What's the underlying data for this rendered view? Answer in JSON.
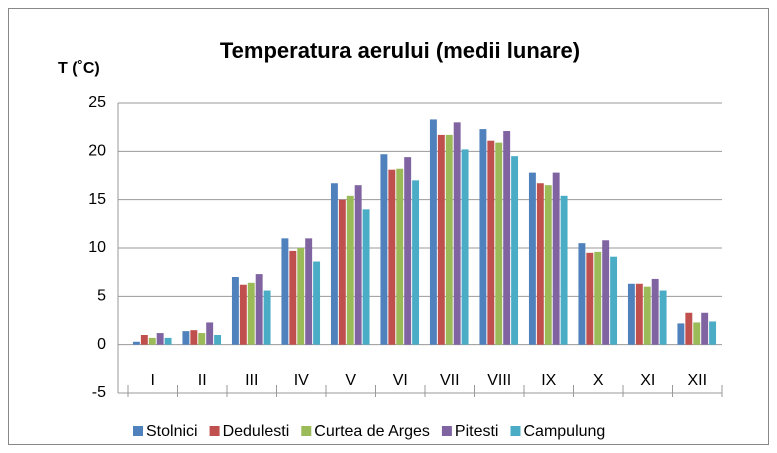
{
  "chart_data": {
    "type": "bar",
    "title": "Temperatura aerului (medii lunare)",
    "y_label": "T (˚C)",
    "categories": [
      "I",
      "II",
      "III",
      "IV",
      "V",
      "VI",
      "VII",
      "VIII",
      "IX",
      "X",
      "XI",
      "XII"
    ],
    "series": [
      {
        "name": "Stolnici",
        "color": "#4f81bd",
        "values": [
          0.3,
          1.4,
          7.0,
          11.0,
          16.7,
          19.7,
          23.3,
          22.3,
          17.8,
          10.5,
          6.3,
          2.2
        ]
      },
      {
        "name": "Dedulesti",
        "color": "#c0504d",
        "values": [
          1.0,
          1.5,
          6.2,
          9.7,
          15.0,
          18.1,
          21.7,
          21.1,
          16.7,
          9.5,
          6.3,
          3.3
        ]
      },
      {
        "name": "Curtea de Arges",
        "color": "#9bbb59",
        "values": [
          0.7,
          1.2,
          6.4,
          10.0,
          15.4,
          18.2,
          21.7,
          20.9,
          16.5,
          9.6,
          6.0,
          2.3
        ]
      },
      {
        "name": "Pitesti",
        "color": "#8064a2",
        "values": [
          1.2,
          2.3,
          7.3,
          11.0,
          16.5,
          19.4,
          23.0,
          22.1,
          17.8,
          10.8,
          6.8,
          3.3
        ]
      },
      {
        "name": "Campulung",
        "color": "#4bacc6",
        "values": [
          0.7,
          1.0,
          5.6,
          8.6,
          14.0,
          17.0,
          20.2,
          19.5,
          15.4,
          9.1,
          5.6,
          2.4
        ]
      }
    ],
    "ylim": [
      -5,
      25
    ],
    "yticks": [
      -5,
      0,
      5,
      10,
      15,
      20,
      25
    ],
    "grid": true,
    "legend": "bottom"
  }
}
